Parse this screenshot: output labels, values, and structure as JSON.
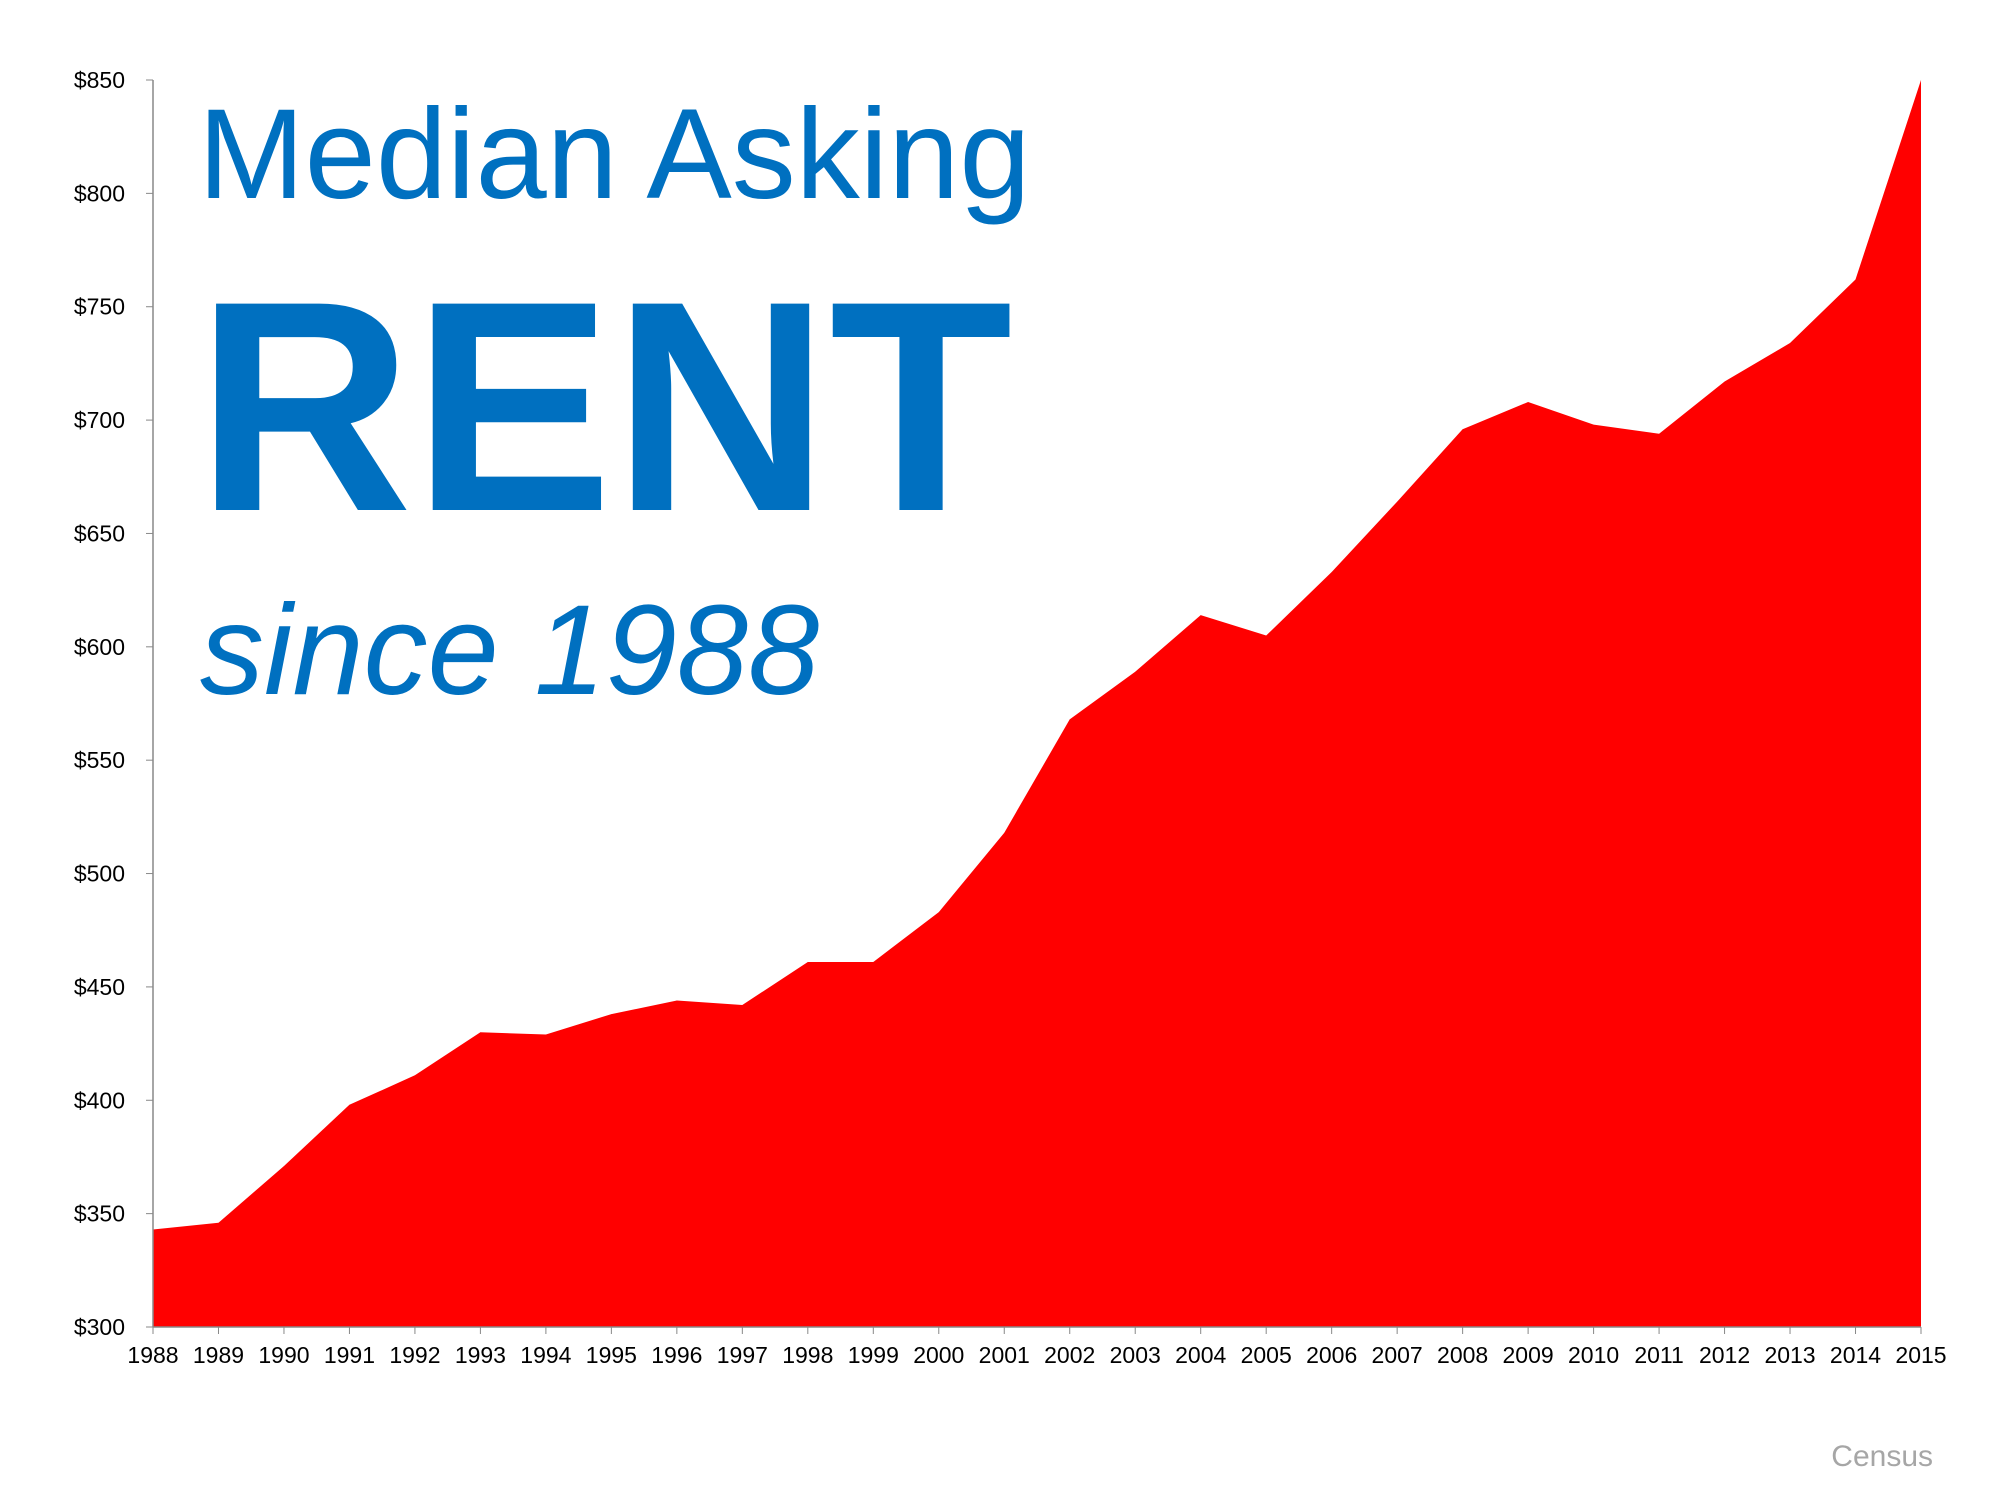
{
  "title": {
    "line1": "Median Asking",
    "line2": "RENT",
    "line3": "since 1988"
  },
  "source": "Census",
  "colors": {
    "area": "#FF0000",
    "title": "#0070C0",
    "source": "#A6A6A6"
  },
  "chart_data": {
    "type": "area",
    "title": "Median Asking RENT since 1988",
    "xlabel": "",
    "ylabel": "",
    "ylim": [
      300,
      850
    ],
    "grid": false,
    "legend": "none",
    "y_ticks": [
      "$300",
      "$350",
      "$400",
      "$450",
      "$500",
      "$550",
      "$600",
      "$650",
      "$700",
      "$750",
      "$800",
      "$850"
    ],
    "y_tick_values": [
      300,
      350,
      400,
      450,
      500,
      550,
      600,
      650,
      700,
      750,
      800,
      850
    ],
    "categories": [
      "1988",
      "1989",
      "1990",
      "1991",
      "1992",
      "1993",
      "1994",
      "1995",
      "1996",
      "1997",
      "1998",
      "1999",
      "2000",
      "2001",
      "2002",
      "2003",
      "2004",
      "2005",
      "2006",
      "2007",
      "2008",
      "2009",
      "2010",
      "2011",
      "2012",
      "2013",
      "2014",
      "2015"
    ],
    "values": [
      343,
      346,
      371,
      398,
      411,
      430,
      429,
      438,
      444,
      442,
      461,
      461,
      483,
      518,
      568,
      589,
      614,
      605,
      633,
      664,
      696,
      708,
      698,
      694,
      717,
      734,
      762,
      850
    ]
  }
}
